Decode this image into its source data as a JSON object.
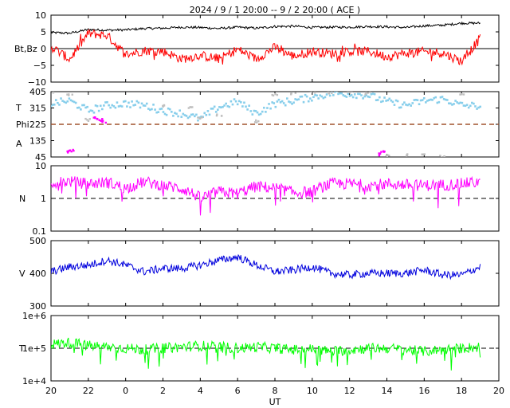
{
  "title": "2024 /  9 /  1   20:00 -- 9 /  2   20:00 ( ACE )",
  "x_axis": {
    "label": "UT",
    "ticks": [
      "20",
      "22",
      "0",
      "2",
      "4",
      "6",
      "8",
      "10",
      "12",
      "14",
      "16",
      "18",
      "20"
    ],
    "range_hours": [
      0,
      24
    ]
  },
  "colors": {
    "bt": "#000000",
    "bz": "#ff0000",
    "theta": "#87ceeb",
    "phi_toward": "#bfbfbf",
    "phi_away": "#ff00ff",
    "density": "#ff00ff",
    "speed": "#0000dd",
    "temperature": "#00ff00",
    "reference_line": "#a0522d"
  },
  "chart_data": [
    {
      "type": "line",
      "panel": "magnetic-field",
      "ylabel": "Bt,Bz",
      "ylim": [
        -10,
        10
      ],
      "yticks": [
        "10",
        "5",
        "0",
        "−5",
        "−10"
      ],
      "reference_y": 0,
      "series": [
        {
          "key": "bt",
          "x": [
            0,
            1,
            2,
            3,
            4,
            5,
            6,
            7,
            8,
            9,
            10,
            11,
            12,
            13,
            14,
            15,
            16,
            17,
            18,
            19,
            20,
            21,
            22,
            23
          ],
          "values": [
            4.8,
            4.6,
            5.7,
            5.5,
            5.6,
            6.0,
            6.1,
            6.4,
            6.3,
            6.0,
            6.4,
            6.1,
            6.6,
            6.7,
            6.3,
            6.4,
            6.4,
            6.6,
            6.5,
            6.3,
            6.8,
            7.0,
            7.6,
            7.6
          ]
        },
        {
          "key": "bz",
          "x": [
            0,
            1,
            2,
            3,
            4,
            5,
            6,
            7,
            8,
            9,
            10,
            11,
            12,
            13,
            14,
            15,
            16,
            17,
            18,
            19,
            20,
            21,
            22,
            23
          ],
          "values": [
            0.6,
            -3.2,
            4.5,
            4.0,
            -1.8,
            -0.6,
            -0.8,
            -3.1,
            -2.0,
            -3.1,
            -0.2,
            -3.1,
            0.4,
            -2.3,
            -0.8,
            -1.5,
            -0.9,
            -0.8,
            -2.4,
            -1.4,
            -0.9,
            -1.3,
            -3.8,
            3.0
          ]
        }
      ]
    },
    {
      "type": "scatter",
      "panel": "theta-phi",
      "ylabel_lines": [
        "T",
        "Phi",
        "A"
      ],
      "ylim": [
        45,
        405
      ],
      "yticks": [
        "405",
        "315",
        "225",
        "135",
        "45"
      ],
      "reference_y": 225,
      "series": [
        {
          "key": "theta",
          "x": [
            0,
            1,
            2,
            3,
            4,
            5,
            6,
            7,
            8,
            9,
            10,
            11,
            12,
            13,
            14,
            15,
            16,
            17,
            18,
            19,
            20,
            21,
            22,
            23
          ],
          "values": [
            340,
            355,
            300,
            330,
            340,
            330,
            300,
            285,
            255,
            320,
            350,
            285,
            340,
            355,
            375,
            395,
            393,
            386,
            350,
            330,
            355,
            365,
            330,
            326
          ]
        },
        {
          "key": "phi_toward",
          "x": [
            0,
            1,
            2,
            6,
            7.5,
            8,
            9,
            11,
            12,
            13,
            14,
            15,
            16,
            17,
            18,
            19,
            20,
            21,
            22
          ],
          "values": [
            395,
            385,
            250,
            330,
            320,
            260,
            275,
            240,
            385,
            395,
            405,
            398,
            402,
            395,
            50,
            55,
            58,
            50,
            395
          ]
        },
        {
          "key": "phi_away",
          "x": [
            1.0,
            1.1,
            2.4,
            2.6,
            2.8,
            17.5,
            17.8
          ],
          "values": [
            75,
            85,
            260,
            250,
            240,
            60,
            70
          ]
        }
      ]
    },
    {
      "type": "line",
      "panel": "density",
      "ylabel": "N",
      "yscale": "log",
      "ylim": [
        0.1,
        10
      ],
      "yticks": [
        "10",
        "1",
        "0.1"
      ],
      "reference_y": 1,
      "series": [
        {
          "key": "density",
          "x": [
            0,
            1,
            2,
            3,
            4,
            5,
            6,
            7,
            8,
            9,
            10,
            11,
            12,
            13,
            14,
            15,
            16,
            17,
            18,
            19,
            20,
            21,
            22,
            23
          ],
          "values": [
            3.0,
            3.3,
            2.8,
            3.1,
            2.0,
            3.2,
            2.5,
            2.0,
            1.0,
            1.6,
            1.4,
            2.3,
            2.1,
            1.5,
            1.6,
            2.8,
            2.8,
            2.5,
            2.8,
            2.6,
            2.5,
            2.6,
            2.8,
            3.2
          ]
        }
      ]
    },
    {
      "type": "line",
      "panel": "speed",
      "ylabel": "V",
      "ylim": [
        300,
        500
      ],
      "yticks": [
        "500",
        "400",
        "300"
      ],
      "series": [
        {
          "key": "speed",
          "x": [
            0,
            1,
            2,
            3,
            4,
            5,
            6,
            7,
            8,
            9,
            10,
            11,
            12,
            13,
            14,
            15,
            16,
            17,
            18,
            19,
            20,
            21,
            22,
            23
          ],
          "values": [
            405,
            420,
            425,
            440,
            425,
            405,
            415,
            415,
            425,
            440,
            450,
            425,
            405,
            410,
            420,
            400,
            395,
            400,
            400,
            400,
            410,
            395,
            395,
            420
          ]
        }
      ]
    },
    {
      "type": "line",
      "panel": "temperature",
      "ylabel": "T",
      "yscale": "log",
      "ylim": [
        10000,
        1000000
      ],
      "yticks": [
        "1e+6",
        "1e+5",
        "1e+4"
      ],
      "reference_y": 100000,
      "series": [
        {
          "key": "temperature",
          "x": [
            0,
            1,
            2,
            3,
            4,
            5,
            6,
            7,
            8,
            9,
            10,
            11,
            12,
            13,
            14,
            15,
            16,
            17,
            18,
            19,
            20,
            21,
            22,
            23
          ],
          "values": [
            130000,
            150000,
            120000,
            110000,
            100000,
            90000,
            100000,
            110000,
            120000,
            110000,
            100000,
            110000,
            100000,
            90000,
            95000,
            80000,
            90000,
            100000,
            100000,
            90000,
            80000,
            90000,
            100000,
            110000
          ]
        }
      ]
    }
  ]
}
